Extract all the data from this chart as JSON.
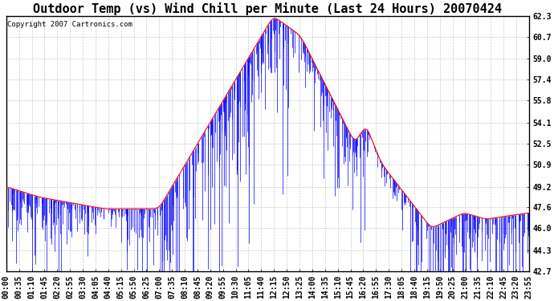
{
  "title": "Outdoor Temp (vs) Wind Chill per Minute (Last 24 Hours) 20070424",
  "copyright": "Copyright 2007 Cartronics.com",
  "yticks": [
    42.7,
    44.3,
    46.0,
    47.6,
    49.2,
    50.9,
    52.5,
    54.1,
    55.8,
    57.4,
    59.0,
    60.7,
    62.3
  ],
  "ylim": [
    42.7,
    62.3
  ],
  "xtick_labels": [
    "00:00",
    "00:35",
    "01:10",
    "01:45",
    "02:20",
    "02:55",
    "03:30",
    "04:05",
    "04:40",
    "05:15",
    "05:50",
    "06:25",
    "07:00",
    "07:35",
    "08:10",
    "08:45",
    "09:20",
    "09:55",
    "10:30",
    "11:05",
    "11:40",
    "12:15",
    "12:50",
    "13:25",
    "14:00",
    "14:35",
    "15:10",
    "15:45",
    "16:20",
    "16:55",
    "17:30",
    "18:05",
    "18:40",
    "19:15",
    "19:50",
    "20:25",
    "21:00",
    "21:35",
    "22:10",
    "22:45",
    "23:20",
    "23:55"
  ],
  "background_color": "#ffffff",
  "grid_color": "#bbbbbb",
  "bar_color": "#0000ff",
  "line_color": "#ff0000",
  "title_fontsize": 11,
  "tick_fontsize": 7,
  "copyright_fontsize": 6.5
}
